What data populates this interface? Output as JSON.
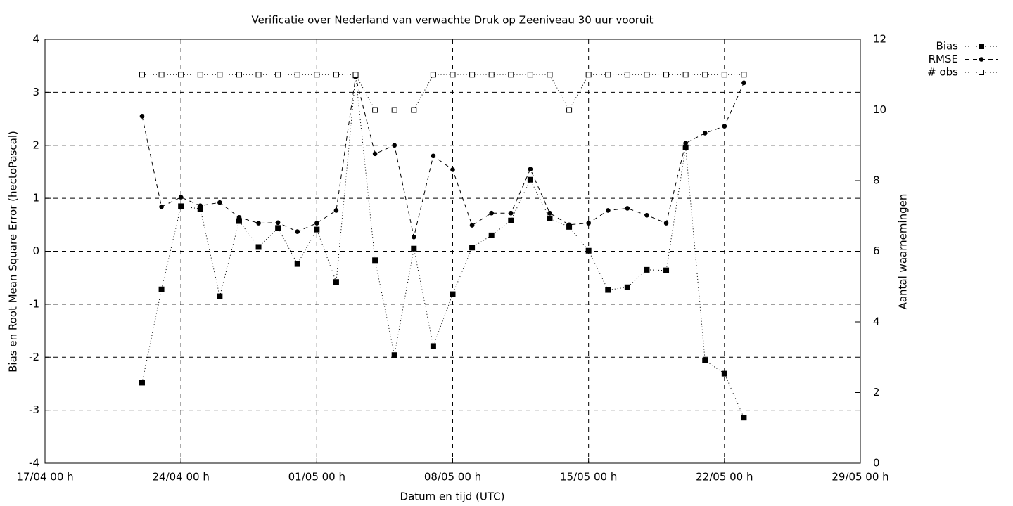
{
  "chart_data": {
    "type": "line",
    "title": "Verificatie over Nederland van verwachte Druk op Zeeniveau 30 uur vooruit",
    "x_label": "Datum en tijd (UTC)",
    "y_label": "Bias en Root Mean Square Error (hectoPascal)",
    "y2_label": "Aantal waarnemingen",
    "x": [
      "22/04 00 h",
      "23/04 00 h",
      "24/04 00 h",
      "25/04 00 h",
      "26/04 00 h",
      "27/04 00 h",
      "28/04 00 h",
      "29/04 00 h",
      "30/04 00 h",
      "01/05 00 h",
      "02/05 00 h",
      "03/05 00 h",
      "04/05 00 h",
      "05/05 00 h",
      "06/05 00 h",
      "07/05 00 h",
      "08/05 00 h",
      "09/05 00 h",
      "10/05 00 h",
      "11/05 00 h",
      "12/05 00 h",
      "13/05 00 h",
      "14/05 00 h",
      "15/05 00 h",
      "16/05 00 h",
      "17/05 00 h",
      "18/05 00 h",
      "19/05 00 h",
      "20/05 00 h",
      "21/05 00 h",
      "22/05 00 h",
      "23/05 00 h"
    ],
    "series": [
      {
        "name": "Bias",
        "color": "#000000",
        "marker": "filled-square",
        "dash": "1,3",
        "values": [
          -2.48,
          -0.72,
          0.85,
          0.8,
          -0.85,
          0.57,
          0.08,
          0.44,
          -0.24,
          0.41,
          -0.58,
          3.32,
          -0.17,
          -1.96,
          0.05,
          -1.79,
          -0.81,
          0.07,
          0.3,
          0.58,
          1.35,
          0.62,
          0.46,
          0.01,
          -0.73,
          -0.68,
          -0.35,
          -0.36,
          1.96,
          -2.06,
          -2.31,
          -3.14
        ]
      },
      {
        "name": "RMSE",
        "color": "#000000",
        "marker": "filled-circle",
        "dash": "6,5",
        "values": [
          2.55,
          0.84,
          1.02,
          0.86,
          0.92,
          0.64,
          0.53,
          0.54,
          0.37,
          0.53,
          0.77,
          3.29,
          1.84,
          2.0,
          0.27,
          1.8,
          1.54,
          0.49,
          0.72,
          0.72,
          1.55,
          0.72,
          0.5,
          0.53,
          0.77,
          0.81,
          0.68,
          0.53,
          2.04,
          2.23,
          2.36,
          3.18
        ]
      },
      {
        "name": "# obs",
        "color": "#000000",
        "marker": "open-square",
        "dash": "1,3",
        "axis": "y2",
        "values": [
          11,
          11,
          11,
          11,
          11,
          11,
          11,
          11,
          11,
          11,
          11,
          11,
          10,
          10,
          10,
          11,
          11,
          11,
          11,
          11,
          11,
          11,
          10,
          11,
          11,
          11,
          11,
          11,
          11,
          11,
          11,
          11
        ]
      }
    ],
    "xlim": [
      "17/04 00 h",
      "29/05 00 h"
    ],
    "xticks": [
      "17/04 00 h",
      "24/04 00 h",
      "01/05 00 h",
      "08/05 00 h",
      "15/05 00 h",
      "22/05 00 h",
      "29/05 00 h"
    ],
    "ylim": [
      -4,
      4
    ],
    "yticks": [
      -4,
      -3,
      -2,
      -1,
      0,
      1,
      2,
      3,
      4
    ],
    "y2lim": [
      0,
      12
    ],
    "y2ticks": [
      0,
      2,
      4,
      6,
      8,
      10,
      12
    ],
    "grid": true,
    "legend": "outside-top-right"
  }
}
